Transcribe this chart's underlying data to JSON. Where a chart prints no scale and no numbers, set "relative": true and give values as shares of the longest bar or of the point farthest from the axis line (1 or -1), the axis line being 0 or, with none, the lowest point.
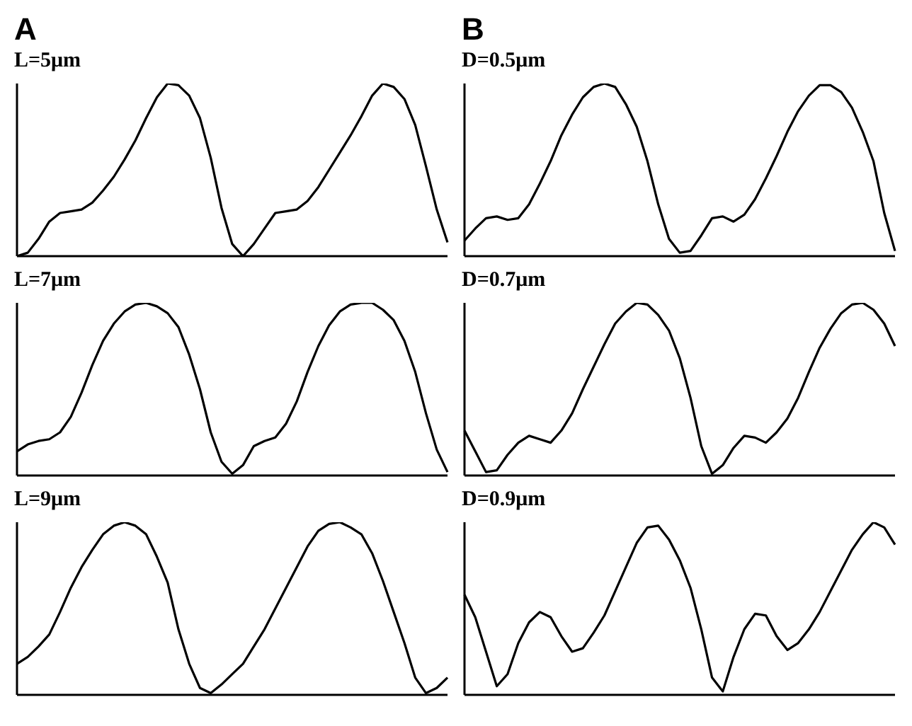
{
  "chart_data": [
    {
      "type": "line",
      "annotations": [
        "A"
      ],
      "title": "L=5μm",
      "relative": true,
      "categories": [
        null,
        null,
        null,
        null,
        null,
        null,
        null,
        null,
        null,
        null,
        null,
        null,
        null,
        null,
        null,
        null,
        null,
        null,
        null,
        null,
        null,
        null,
        null,
        null,
        null,
        null,
        null,
        null,
        null,
        null,
        null,
        null,
        null,
        null,
        null,
        null,
        null,
        null,
        null,
        null,
        null
      ],
      "series": [
        {
          "color": "#000000",
          "values": [
            0,
            0.02,
            0.1,
            0.2,
            0.25,
            0.26,
            0.27,
            0.31,
            0.38,
            0.46,
            0.56,
            0.67,
            0.8,
            0.92,
            1.0,
            0.99,
            0.93,
            0.8,
            0.57,
            0.28,
            0.07,
            0.0,
            0.07,
            0.16,
            0.25,
            0.26,
            0.27,
            0.32,
            0.4,
            0.5,
            0.6,
            0.7,
            0.81,
            0.93,
            1.0,
            0.98,
            0.91,
            0.76,
            0.52,
            0.27,
            0.08
          ]
        }
      ]
    },
    {
      "type": "line",
      "annotations": [
        "B"
      ],
      "title": "D=0.5μm",
      "relative": true,
      "categories": [
        null,
        null,
        null,
        null,
        null,
        null,
        null,
        null,
        null,
        null,
        null,
        null,
        null,
        null,
        null,
        null,
        null,
        null,
        null,
        null,
        null,
        null,
        null,
        null,
        null,
        null,
        null,
        null,
        null,
        null,
        null,
        null,
        null,
        null,
        null,
        null,
        null,
        null,
        null,
        null,
        null
      ],
      "series": [
        {
          "color": "#000000",
          "values": [
            0.09,
            0.16,
            0.22,
            0.23,
            0.21,
            0.22,
            0.3,
            0.42,
            0.55,
            0.7,
            0.82,
            0.92,
            0.98,
            1.0,
            0.98,
            0.88,
            0.75,
            0.55,
            0.3,
            0.1,
            0.02,
            0.03,
            0.12,
            0.22,
            0.23,
            0.2,
            0.24,
            0.33,
            0.45,
            0.58,
            0.72,
            0.84,
            0.93,
            0.99,
            0.99,
            0.95,
            0.86,
            0.72,
            0.55,
            0.25,
            0.03
          ]
        }
      ]
    },
    {
      "type": "line",
      "title": "L=7μm",
      "relative": true,
      "categories": [
        null,
        null,
        null,
        null,
        null,
        null,
        null,
        null,
        null,
        null,
        null,
        null,
        null,
        null,
        null,
        null,
        null,
        null,
        null,
        null,
        null,
        null,
        null,
        null,
        null,
        null,
        null,
        null,
        null,
        null,
        null,
        null,
        null,
        null,
        null,
        null,
        null,
        null,
        null,
        null,
        null
      ],
      "series": [
        {
          "color": "#000000",
          "values": [
            0.14,
            0.18,
            0.2,
            0.21,
            0.25,
            0.34,
            0.48,
            0.64,
            0.78,
            0.88,
            0.95,
            0.99,
            1.0,
            0.98,
            0.94,
            0.86,
            0.7,
            0.5,
            0.25,
            0.08,
            0.01,
            0.06,
            0.17,
            0.2,
            0.22,
            0.3,
            0.43,
            0.6,
            0.75,
            0.87,
            0.95,
            0.99,
            1.0,
            1.0,
            0.96,
            0.9,
            0.78,
            0.6,
            0.36,
            0.15,
            0.02
          ]
        }
      ]
    },
    {
      "type": "line",
      "title": "D=0.7μm",
      "relative": true,
      "categories": [
        null,
        null,
        null,
        null,
        null,
        null,
        null,
        null,
        null,
        null,
        null,
        null,
        null,
        null,
        null,
        null,
        null,
        null,
        null,
        null,
        null,
        null,
        null,
        null,
        null,
        null,
        null,
        null,
        null,
        null,
        null,
        null,
        null,
        null,
        null,
        null,
        null,
        null,
        null,
        null,
        null
      ],
      "series": [
        {
          "color": "#000000",
          "values": [
            0.26,
            0.14,
            0.02,
            0.03,
            0.12,
            0.19,
            0.23,
            0.21,
            0.19,
            0.26,
            0.36,
            0.5,
            0.63,
            0.76,
            0.88,
            0.95,
            1.0,
            0.99,
            0.93,
            0.84,
            0.68,
            0.45,
            0.17,
            0.01,
            0.06,
            0.16,
            0.23,
            0.22,
            0.19,
            0.25,
            0.33,
            0.45,
            0.6,
            0.74,
            0.85,
            0.94,
            0.99,
            1.0,
            0.96,
            0.88,
            0.75
          ]
        }
      ]
    },
    {
      "type": "line",
      "title": "L=9μm",
      "relative": true,
      "categories": [
        null,
        null,
        null,
        null,
        null,
        null,
        null,
        null,
        null,
        null,
        null,
        null,
        null,
        null,
        null,
        null,
        null,
        null,
        null,
        null,
        null,
        null,
        null,
        null,
        null,
        null,
        null,
        null,
        null,
        null,
        null,
        null,
        null,
        null,
        null,
        null,
        null,
        null,
        null,
        null,
        null
      ],
      "series": [
        {
          "color": "#000000",
          "values": [
            0.18,
            0.22,
            0.28,
            0.35,
            0.48,
            0.62,
            0.74,
            0.84,
            0.93,
            0.98,
            1.0,
            0.98,
            0.93,
            0.8,
            0.65,
            0.38,
            0.18,
            0.04,
            0.01,
            0.06,
            0.12,
            0.18,
            0.28,
            0.38,
            0.5,
            0.62,
            0.74,
            0.86,
            0.95,
            0.99,
            1.0,
            0.97,
            0.93,
            0.82,
            0.66,
            0.48,
            0.3,
            0.1,
            0.01,
            0.04,
            0.1
          ]
        }
      ]
    },
    {
      "type": "line",
      "title": "D=0.9μm",
      "relative": true,
      "categories": [
        null,
        null,
        null,
        null,
        null,
        null,
        null,
        null,
        null,
        null,
        null,
        null,
        null,
        null,
        null,
        null,
        null,
        null,
        null,
        null,
        null,
        null,
        null,
        null,
        null,
        null,
        null,
        null,
        null,
        null,
        null,
        null,
        null,
        null,
        null,
        null,
        null,
        null,
        null,
        null,
        null
      ],
      "series": [
        {
          "color": "#000000",
          "values": [
            0.58,
            0.45,
            0.25,
            0.05,
            0.12,
            0.3,
            0.42,
            0.48,
            0.45,
            0.34,
            0.25,
            0.27,
            0.36,
            0.46,
            0.6,
            0.74,
            0.88,
            0.97,
            0.98,
            0.9,
            0.78,
            0.62,
            0.38,
            0.1,
            0.02,
            0.22,
            0.38,
            0.47,
            0.46,
            0.34,
            0.26,
            0.3,
            0.38,
            0.48,
            0.6,
            0.72,
            0.84,
            0.93,
            1.0,
            0.97,
            0.87
          ]
        }
      ]
    }
  ]
}
